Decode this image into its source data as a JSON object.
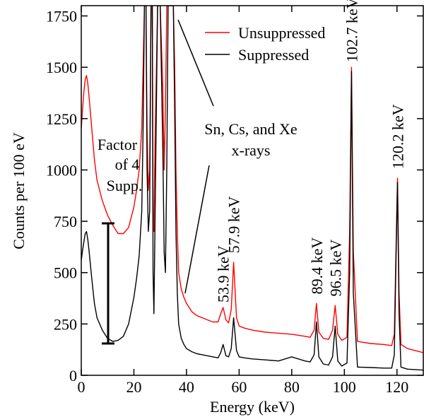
{
  "chart_data": {
    "type": "line",
    "xlabel": "Energy (keV)",
    "ylabel": "Counts per 100 eV",
    "xlim": [
      0,
      130
    ],
    "ylim": [
      0,
      1800
    ],
    "x_ticks": [
      0,
      20,
      40,
      60,
      80,
      100,
      120
    ],
    "y_ticks": [
      0,
      250,
      500,
      750,
      1000,
      1250,
      1500,
      1750
    ],
    "grid": false,
    "legend_position": "top-right",
    "series": [
      {
        "name": "Unsuppressed",
        "color": "#ff0000",
        "x": [
          0,
          0.5,
          1,
          1.5,
          2,
          2.5,
          3,
          4,
          5,
          6,
          8,
          10,
          12,
          14,
          16,
          18,
          20,
          21,
          22,
          23,
          23.5,
          24,
          24.3,
          24.6,
          25,
          25.5,
          26,
          26.5,
          27,
          27.3,
          27.6,
          28,
          29,
          30,
          31,
          31.5,
          32,
          32.5,
          33,
          33.5,
          34,
          34.5,
          35,
          35.5,
          36,
          36.5,
          37,
          38,
          39,
          40,
          42,
          44,
          46,
          48,
          50,
          52,
          53,
          53.9,
          55,
          56,
          57,
          57.9,
          59,
          60,
          62,
          65,
          70,
          75,
          80,
          85,
          87,
          88.5,
          89.4,
          90.3,
          92,
          94,
          95.5,
          96.5,
          97.5,
          99,
          101,
          102,
          102.7,
          103.4,
          105,
          110,
          115,
          118,
          119,
          119.6,
          120.2,
          120.8,
          121.5,
          124,
          127,
          130
        ],
        "y": [
          1200,
          1300,
          1380,
          1440,
          1460,
          1420,
          1350,
          1200,
          1050,
          950,
          850,
          780,
          730,
          690,
          690,
          720,
          820,
          900,
          1000,
          1200,
          1500,
          1800,
          1800,
          1800,
          1200,
          900,
          1000,
          1800,
          1800,
          800,
          700,
          1100,
          1800,
          1800,
          1400,
          1000,
          1300,
          1800,
          1800,
          1800,
          1800,
          1800,
          1800,
          1500,
          1000,
          700,
          500,
          420,
          380,
          350,
          310,
          290,
          280,
          270,
          260,
          260,
          300,
          330,
          270,
          255,
          320,
          550,
          280,
          240,
          230,
          220,
          210,
          205,
          200,
          190,
          185,
          220,
          350,
          210,
          180,
          175,
          220,
          340,
          200,
          170,
          185,
          700,
          1500,
          600,
          165,
          155,
          150,
          145,
          200,
          600,
          960,
          400,
          150,
          130,
          120,
          110
        ]
      },
      {
        "name": "Suppressed",
        "color": "#000000",
        "x": [
          0,
          0.5,
          1,
          1.5,
          2,
          2.5,
          3,
          4,
          5,
          6,
          8,
          10,
          12,
          14,
          16,
          18,
          20,
          21,
          22,
          23,
          23.5,
          24,
          24.3,
          24.6,
          25,
          25.5,
          26,
          26.5,
          27,
          27.3,
          27.6,
          28,
          29,
          30,
          31,
          31.5,
          32,
          32.5,
          33,
          33.5,
          34,
          34.5,
          35,
          35.5,
          36,
          36.5,
          37,
          38,
          39,
          40,
          42,
          44,
          46,
          48,
          50,
          52,
          53,
          53.9,
          55,
          56,
          57,
          57.9,
          59,
          60,
          62,
          65,
          70,
          75,
          80,
          85,
          87,
          88.5,
          89.4,
          90.3,
          92,
          94,
          95.5,
          96.5,
          97.5,
          99,
          101,
          102,
          102.7,
          103.4,
          105,
          110,
          115,
          118,
          119,
          119.6,
          120.2,
          120.8,
          121.5,
          124,
          127,
          130
        ],
        "y": [
          560,
          610,
          650,
          690,
          700,
          660,
          600,
          470,
          350,
          280,
          220,
          180,
          165,
          170,
          190,
          250,
          380,
          470,
          580,
          800,
          1200,
          1800,
          1800,
          1800,
          1000,
          700,
          800,
          1800,
          1800,
          500,
          300,
          700,
          1800,
          1800,
          1100,
          600,
          500,
          1000,
          1800,
          1800,
          1800,
          1800,
          1800,
          1300,
          700,
          400,
          250,
          180,
          150,
          130,
          115,
          105,
          100,
          95,
          90,
          85,
          110,
          150,
          95,
          90,
          130,
          280,
          120,
          90,
          85,
          80,
          75,
          70,
          90,
          70,
          65,
          100,
          260,
          90,
          55,
          50,
          90,
          240,
          70,
          45,
          60,
          500,
          1480,
          400,
          40,
          38,
          35,
          35,
          100,
          550,
          940,
          300,
          40,
          30,
          28,
          25
        ]
      }
    ],
    "peak_labels": [
      {
        "text": "53.9 keV",
        "x": 53.9,
        "y": 320
      },
      {
        "text": "57.9 keV",
        "x": 57.9,
        "y": 560
      },
      {
        "text": "89.4 keV",
        "x": 89.4,
        "y": 360
      },
      {
        "text": "96.5 keV",
        "x": 96.5,
        "y": 350
      },
      {
        "text": "102.7 keV",
        "x": 102.7,
        "y": 1490
      },
      {
        "text": "120.2 keV",
        "x": 120.2,
        "y": 970
      }
    ],
    "annotations": {
      "xrays": [
        "Sn, Cs, and Xe",
        "x-rays"
      ],
      "factor": [
        "Factor",
        "of 4",
        "Supp."
      ]
    }
  }
}
